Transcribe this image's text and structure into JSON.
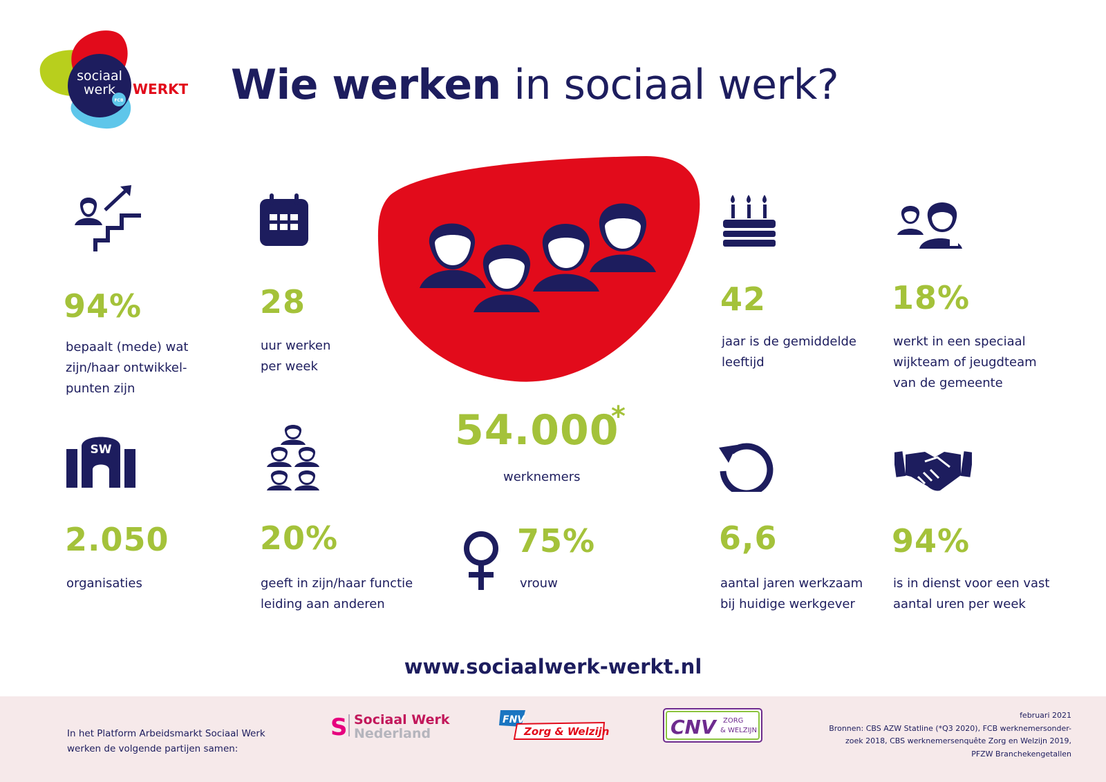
{
  "title": {
    "bold": "Wie werken",
    "rest": " in sociaal werk?"
  },
  "logo": {
    "line1": "sociaal",
    "line2": "werk",
    "werkt": "WERKT!",
    "badge": "FCB"
  },
  "stats": [
    {
      "value": "94%",
      "lines": [
        "bepaalt (mede) wat",
        "zijn/haar ontwikkel-",
        "punten zijn"
      ]
    },
    {
      "value": "28",
      "lines": [
        "uur werken",
        "per week"
      ]
    },
    {
      "value": "42",
      "lines": [
        "jaar is de gemiddelde",
        "leeftijd"
      ]
    },
    {
      "value": "18%",
      "lines": [
        "werkt in een speciaal",
        "wijkteam of jeugdteam",
        "van de gemeente"
      ]
    },
    {
      "value": "2.050",
      "lines": [
        "organisaties"
      ]
    },
    {
      "value": "20%",
      "lines": [
        "geeft in zijn/haar functie",
        "leiding aan anderen"
      ]
    },
    {
      "value": "75%",
      "lines": [
        "vrouw"
      ]
    },
    {
      "value": "6,6",
      "lines": [
        "aantal jaren werkzaam",
        "bij huidige werkgever"
      ]
    },
    {
      "value": "94%",
      "lines": [
        "is in dienst voor een vast",
        "aantal uren per week"
      ]
    }
  ],
  "central": {
    "value": "54.000",
    "asterisk": "*",
    "label": "werknemers"
  },
  "building_label": "SW",
  "url": "www.sociaalwerk-werkt.nl",
  "footer": {
    "text_lines": [
      "In het Platform Arbeidsmarkt Sociaal Werk",
      "werken de volgende partijen samen:"
    ],
    "partners": {
      "swn": {
        "line1": "Sociaal Werk",
        "line2": "Nederland",
        "mark": "S"
      },
      "fnv": {
        "badge": "FNV",
        "name": "Zorg & Welzijn"
      },
      "cnv": {
        "badge": "CNV",
        "line1": "ZORG",
        "line2": "& WELZIJN"
      }
    },
    "sources": [
      "februari 2021",
      "Bronnen: CBS AZW Statline (*Q3 2020), FCB werknemersonder-",
      "zoek 2018, CBS werknemersenquête Zorg en Welzijn 2019,",
      "PFZW Branchekengetallen"
    ]
  },
  "colors": {
    "navy": "#1d1d5e",
    "green": "#a4c23a",
    "red": "#e20b1b",
    "blue": "#5ec6ea",
    "lime": "#b8cf1d",
    "footer_bg": "#f6e9ea"
  },
  "icons": [
    "people-stairs-icon",
    "calendar-icon",
    "group-people-icon",
    "cake-icon",
    "team-icon",
    "building-icon",
    "hierarchy-icon",
    "female-icon",
    "refresh-icon",
    "handshake-icon"
  ]
}
